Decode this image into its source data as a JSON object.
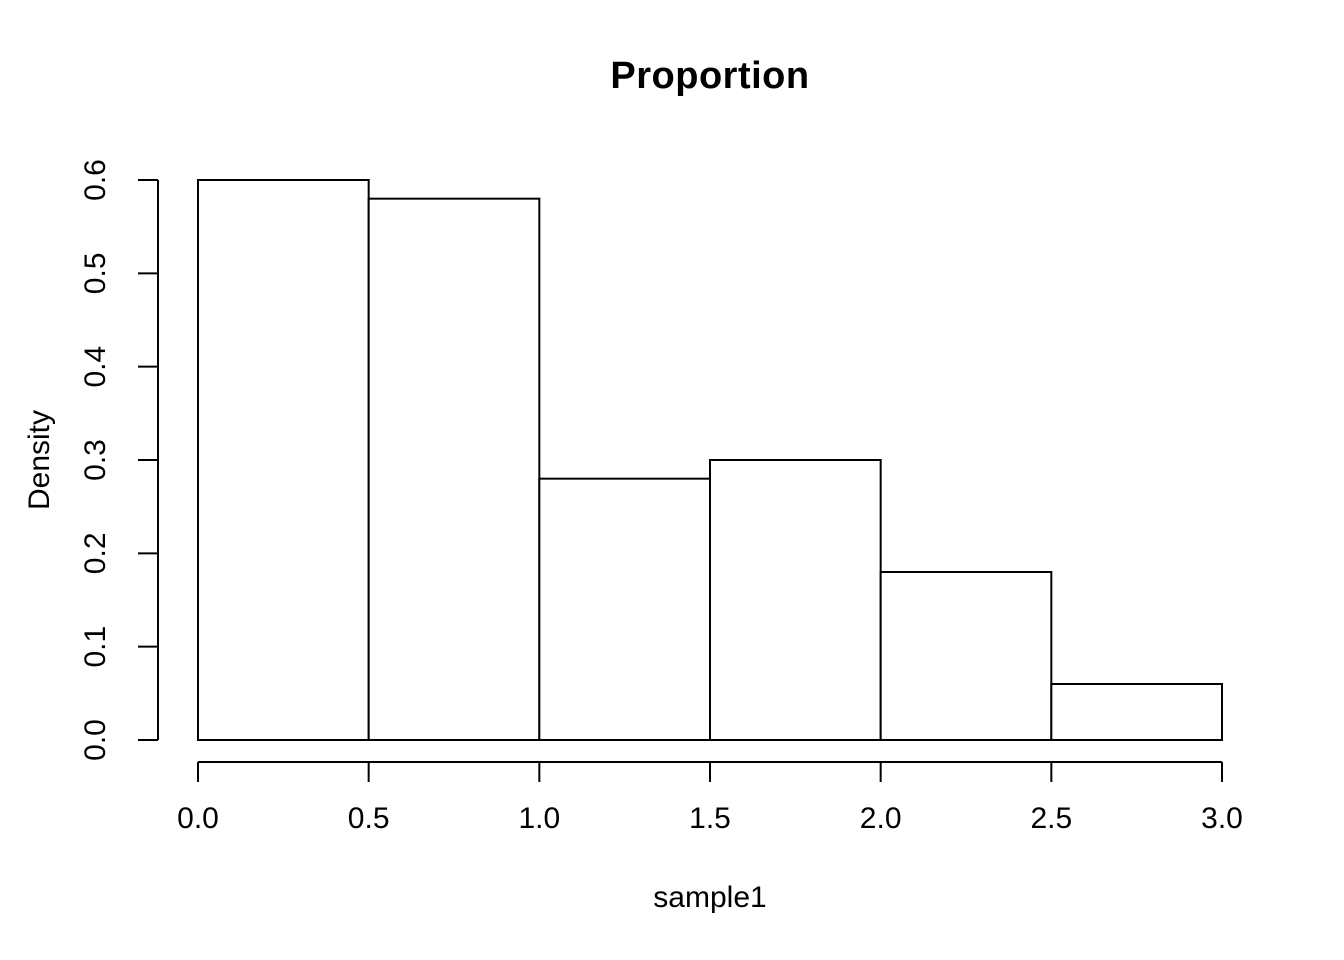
{
  "chart_data": {
    "type": "bar",
    "subtype": "histogram",
    "title": "Proportion",
    "xlabel": "sample1",
    "ylabel": "Density",
    "bin_edges": [
      0.0,
      0.5,
      1.0,
      1.5,
      2.0,
      2.5,
      3.0
    ],
    "densities": [
      0.6,
      0.58,
      0.28,
      0.3,
      0.18,
      0.06
    ],
    "x_ticks": {
      "values": [
        0.0,
        0.5,
        1.0,
        1.5,
        2.0,
        2.5,
        3.0
      ],
      "labels": [
        "0.0",
        "0.5",
        "1.0",
        "1.5",
        "2.0",
        "2.5",
        "3.0"
      ]
    },
    "y_ticks": {
      "values": [
        0.0,
        0.1,
        0.2,
        0.3,
        0.4,
        0.5,
        0.6
      ],
      "labels": [
        "0.0",
        "0.1",
        "0.2",
        "0.3",
        "0.4",
        "0.5",
        "0.6"
      ]
    },
    "xlim": [
      0.0,
      3.0
    ],
    "ylim": [
      0.0,
      0.6
    ],
    "bar_fill": "#ffffff",
    "line_color": "#000000",
    "background": "#ffffff",
    "grid": false,
    "legend": false
  }
}
